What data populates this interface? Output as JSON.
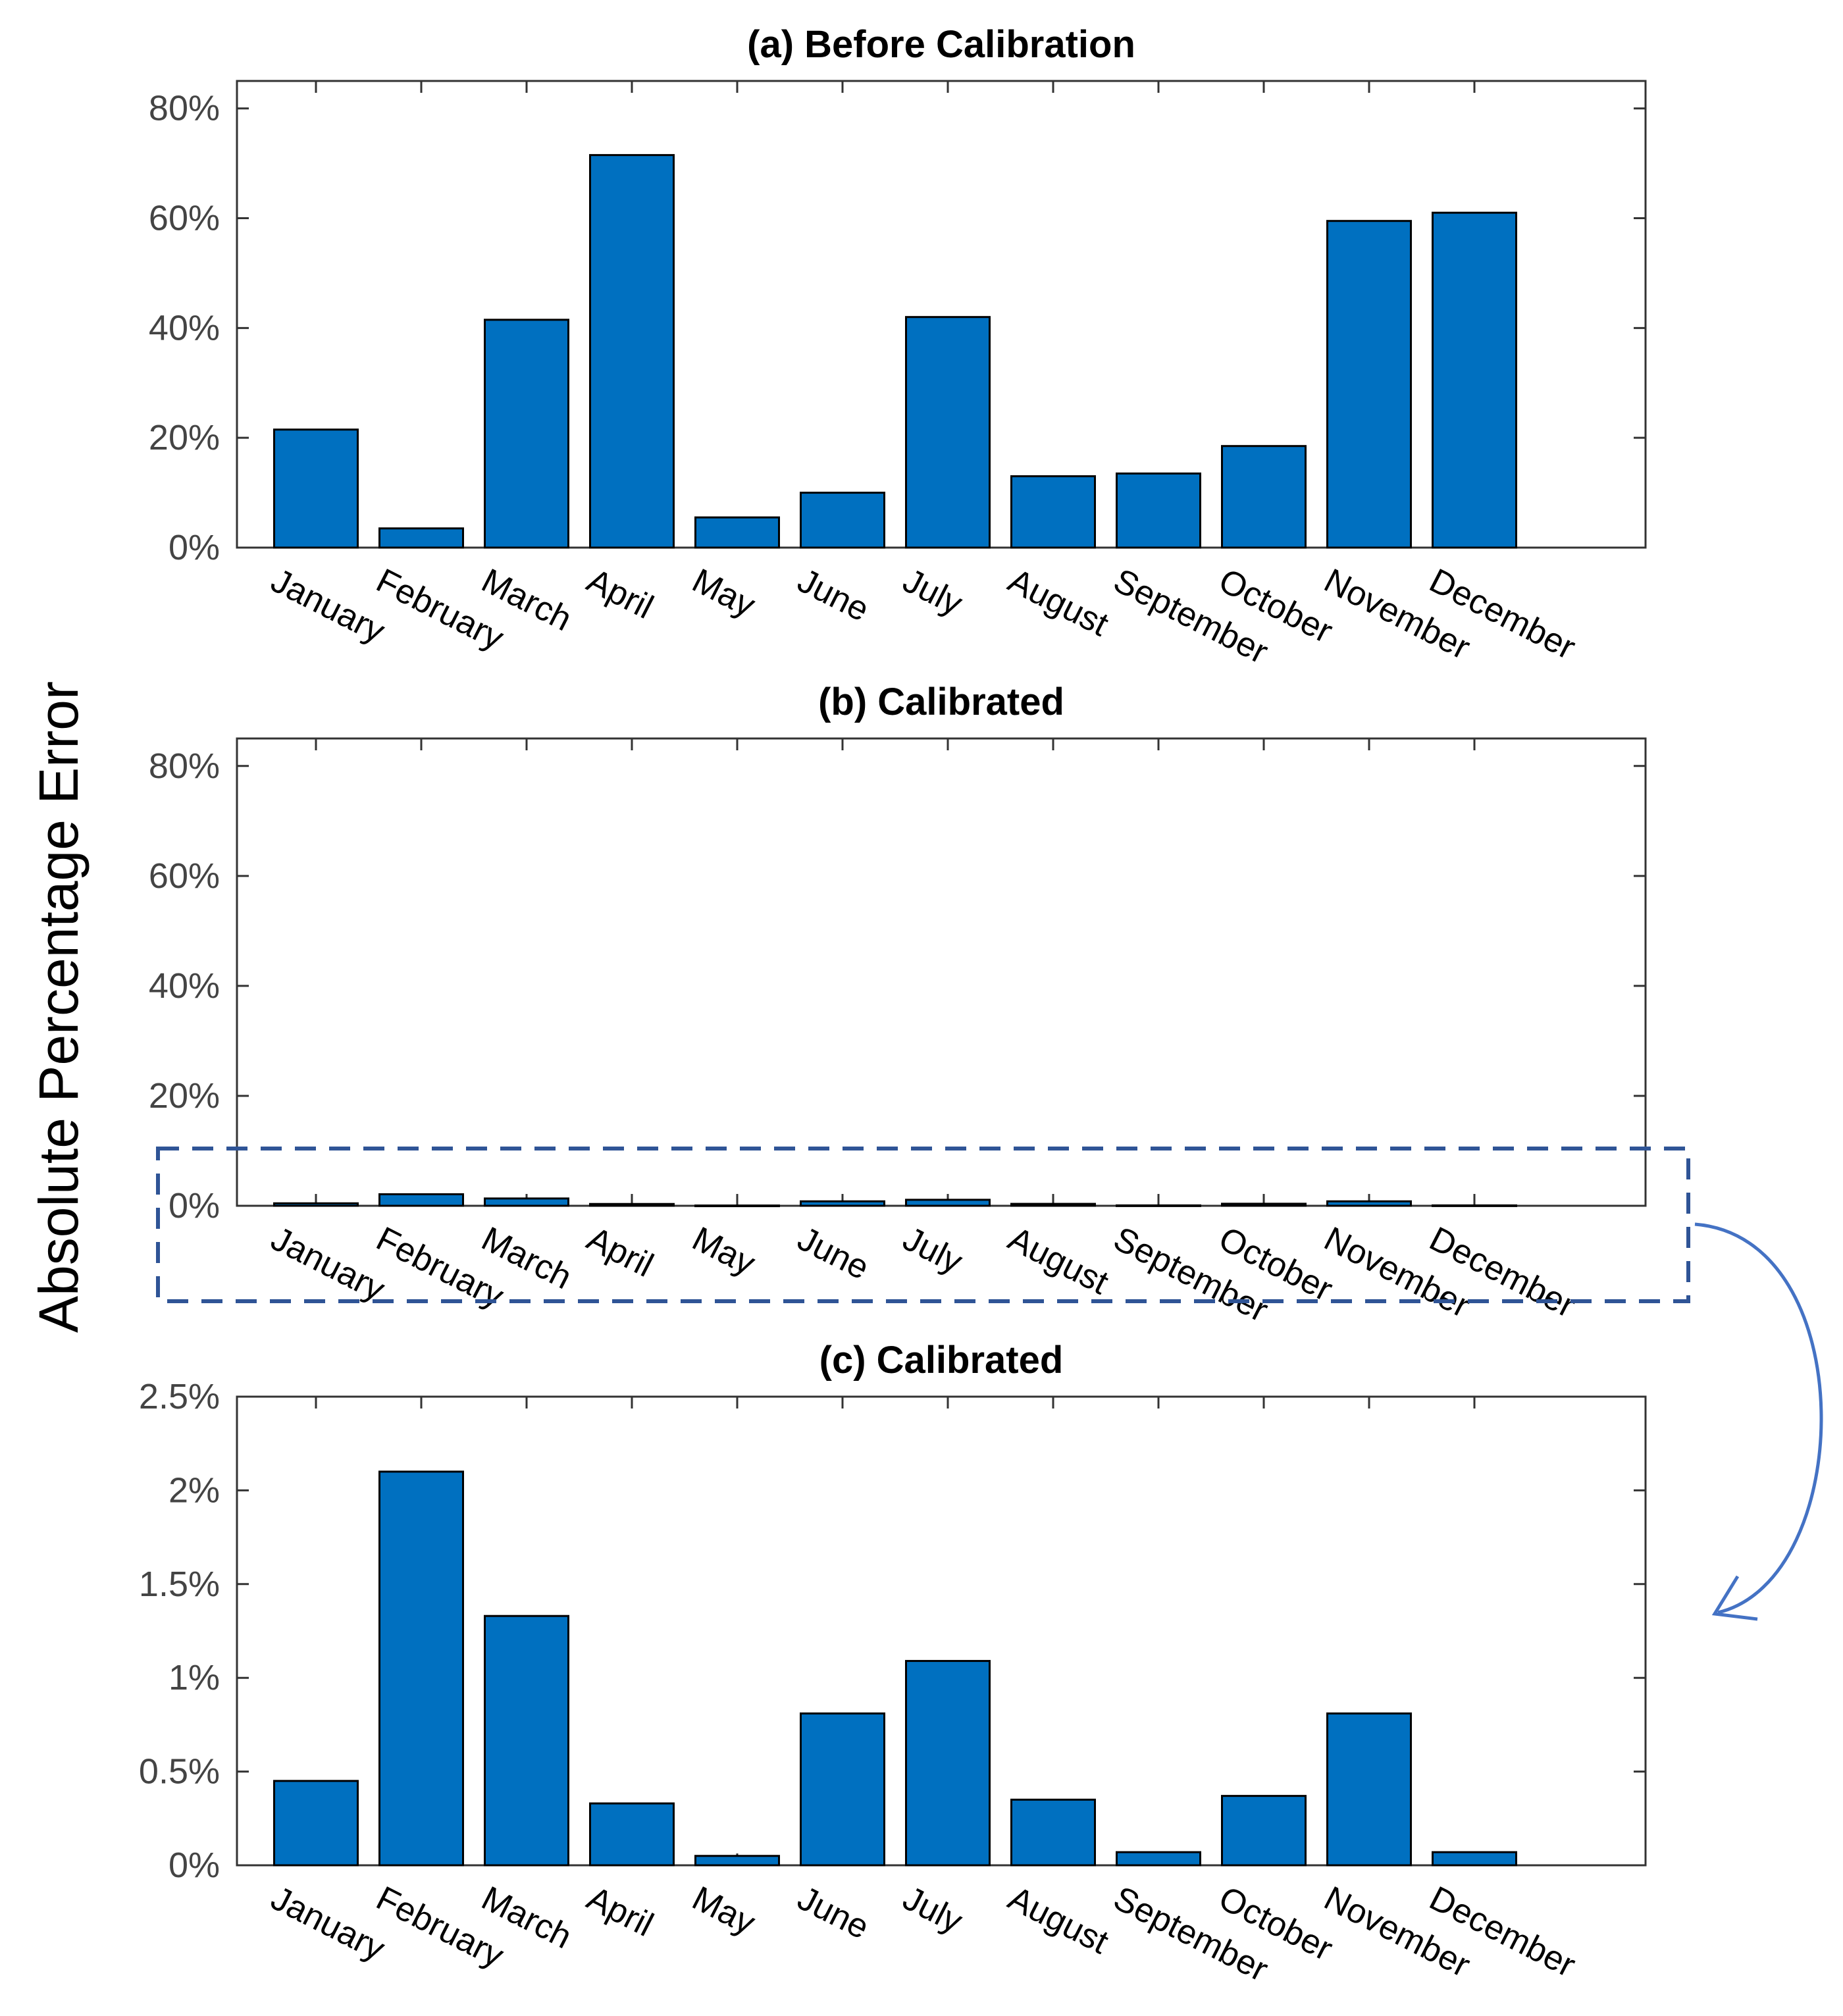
{
  "figure": {
    "ylabel": "Absolute Percentage Error",
    "colors": {
      "bar": "#0070c0",
      "highlight_box": "#2f5496",
      "arrow": "#4472c4"
    }
  },
  "chart_data": [
    {
      "type": "bar",
      "title": "(a) Before Calibration",
      "categories": [
        "January",
        "February",
        "March",
        "April",
        "May",
        "June",
        "July",
        "August",
        "September",
        "October",
        "November",
        "December"
      ],
      "values": [
        21.5,
        3.5,
        41.5,
        71.5,
        5.5,
        10.0,
        42.0,
        13.0,
        13.5,
        18.5,
        59.5,
        61.0
      ],
      "ylim": [
        0,
        85
      ],
      "yticks": [
        0,
        20,
        40,
        60,
        80
      ],
      "ytick_labels": [
        "0%",
        "20%",
        "40%",
        "60%",
        "80%"
      ],
      "xlabel": "",
      "ylabel": "Absolute Percentage Error",
      "grid": false
    },
    {
      "type": "bar",
      "title": "(b) Calibrated",
      "categories": [
        "January",
        "February",
        "March",
        "April",
        "May",
        "June",
        "July",
        "August",
        "September",
        "October",
        "November",
        "December"
      ],
      "values": [
        0.45,
        2.1,
        1.33,
        0.33,
        0.05,
        0.81,
        1.09,
        0.35,
        0.07,
        0.37,
        0.81,
        0.07
      ],
      "ylim": [
        0,
        85
      ],
      "yticks": [
        0,
        20,
        40,
        60,
        80
      ],
      "ytick_labels": [
        "0%",
        "20%",
        "40%",
        "60%",
        "80%"
      ],
      "xlabel": "",
      "ylabel": "Absolute Percentage Error",
      "grid": false
    },
    {
      "type": "bar",
      "title": "(c) Calibrated",
      "categories": [
        "January",
        "February",
        "March",
        "April",
        "May",
        "June",
        "July",
        "August",
        "September",
        "October",
        "November",
        "December"
      ],
      "values": [
        0.45,
        2.1,
        1.33,
        0.33,
        0.05,
        0.81,
        1.09,
        0.35,
        0.07,
        0.37,
        0.81,
        0.07
      ],
      "ylim": [
        0,
        2.5
      ],
      "yticks": [
        0,
        0.5,
        1,
        1.5,
        2,
        2.5
      ],
      "ytick_labels": [
        "0%",
        "0.5%",
        "1%",
        "1.5%",
        "2%",
        "2.5%"
      ],
      "xlabel": "",
      "ylabel": "Absolute Percentage Error",
      "grid": false
    }
  ]
}
